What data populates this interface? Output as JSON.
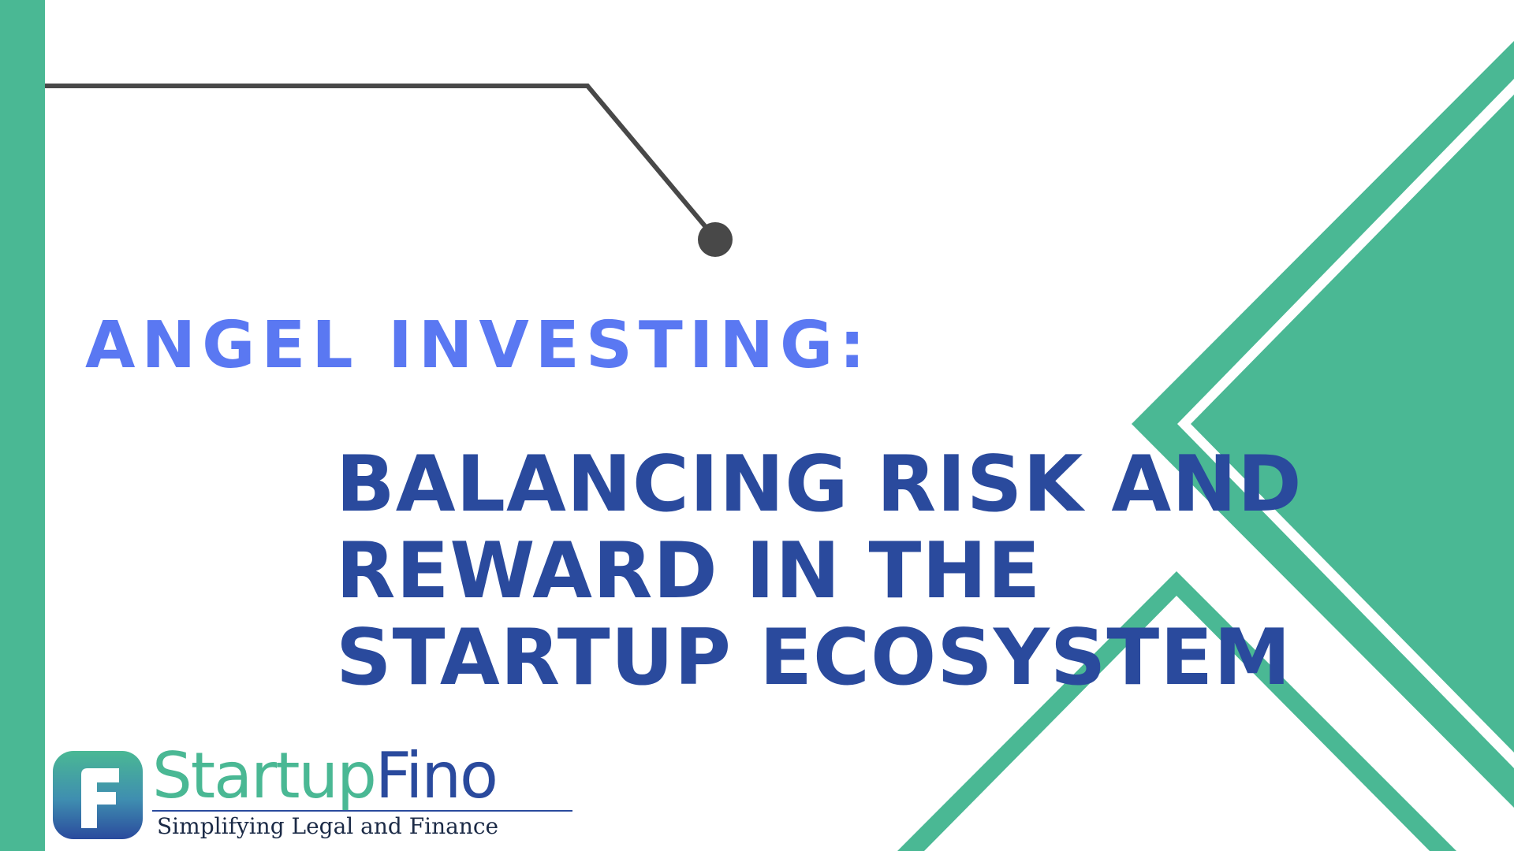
{
  "slide": {
    "kicker": "ANGEL INVESTING:",
    "headline_lines": [
      "BALANCING RISK AND",
      "REWARD IN THE",
      "STARTUP ECOSYSTEM"
    ]
  },
  "brand": {
    "logo_mark_icon": "startupfino-f-logo-icon",
    "name_part_1": "Startup",
    "name_part_2": "Fino",
    "tagline": "Simplifying Legal and Finance"
  },
  "colors": {
    "teal": "#4ab894",
    "kicker_blue": "#5a78f2",
    "headline_navy": "#2a4a9d",
    "line_gray": "#484848",
    "background": "#ffffff"
  }
}
